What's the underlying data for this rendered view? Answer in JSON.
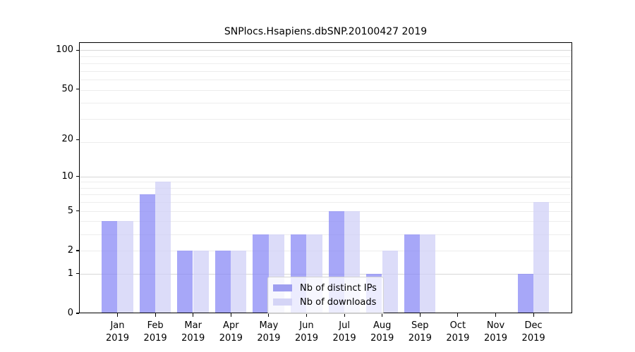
{
  "chart_data": {
    "type": "bar",
    "title": "SNPlocs.Hsapiens.dbSNP.20100427 2019",
    "categories": [
      "Jan",
      "Feb",
      "Mar",
      "Apr",
      "May",
      "Jun",
      "Jul",
      "Aug",
      "Sep",
      "Oct",
      "Nov",
      "Dec"
    ],
    "category_year": "2019",
    "series": [
      {
        "name": "Nb of distinct IPs",
        "values": [
          4,
          7,
          2,
          2,
          3,
          3,
          5,
          1,
          3,
          0,
          0,
          1
        ]
      },
      {
        "name": "Nb of downloads",
        "values": [
          4,
          9,
          2,
          2,
          3,
          3,
          5,
          2,
          3,
          0,
          0,
          6
        ]
      }
    ],
    "y_axis": {
      "scale": "log10(1+x)",
      "tick_values": [
        0,
        1,
        2,
        5,
        10,
        20,
        50,
        100
      ],
      "tick_labels": [
        "0",
        "1",
        "2",
        "5",
        "10",
        "20",
        "50",
        "100"
      ],
      "max": 100
    },
    "grid": {
      "on": true,
      "major_at_values": [
        1,
        10,
        100
      ],
      "minor_at_log_multiples": [
        3,
        4,
        5,
        6,
        7,
        8,
        9,
        10,
        20,
        30,
        40,
        50,
        60,
        70,
        80,
        90
      ]
    },
    "legend": {
      "position": "bottom-center"
    }
  },
  "colors": {
    "ips_bar": "rgba(133,133,245,0.72)",
    "downloads_bar": "rgba(206,206,246,0.72)",
    "legend_ips_swatch": "#9e9ef0",
    "legend_downloads_swatch": "#d4d4f6",
    "grid_major": "#d7d7d7",
    "grid_minor": "#ededed",
    "axis": "#000000"
  }
}
